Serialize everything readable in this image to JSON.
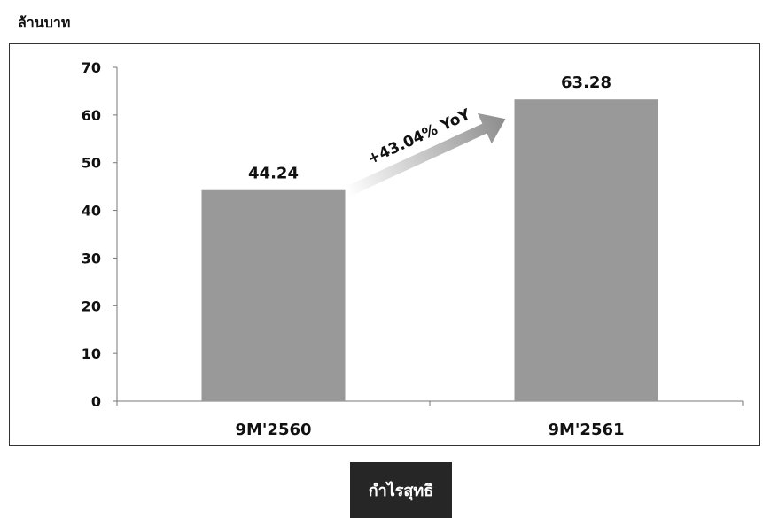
{
  "unit_label": "ล้านบาท",
  "legend_label": "กำไรสุทธิ",
  "annotation": "+43.04% YoY",
  "colors": {
    "bar": "#999999",
    "axis": "#777777",
    "frame": "#333333",
    "legend_bg": "#262626"
  },
  "chart_data": {
    "type": "bar",
    "title": "",
    "xlabel": "",
    "ylabel": "ล้านบาท",
    "categories": [
      "9M'2560",
      "9M'2561"
    ],
    "series": [
      {
        "name": "กำไรสุทธิ",
        "values": [
          44.24,
          63.28
        ]
      }
    ],
    "value_labels": [
      "44.24",
      "63.28"
    ],
    "ylim": [
      0,
      70
    ],
    "yticks": [
      0,
      10,
      20,
      30,
      40,
      50,
      60,
      70
    ],
    "grid": false,
    "legend": "bottom"
  }
}
